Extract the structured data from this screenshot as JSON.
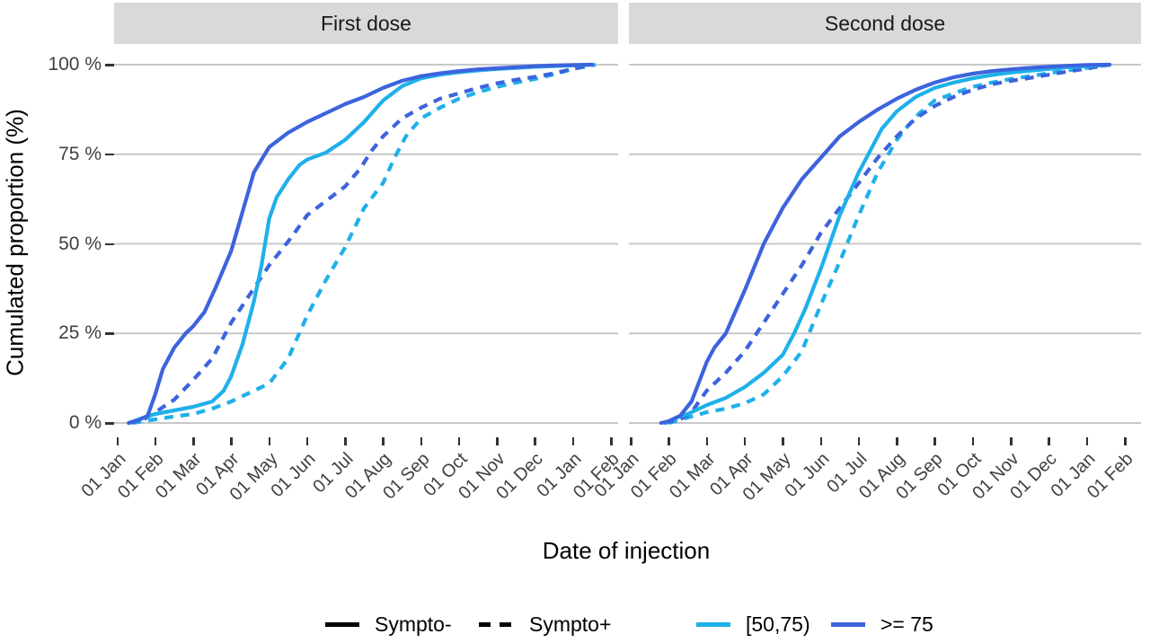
{
  "chart_data": {
    "type": "line",
    "description": "Faceted cumulative distribution curves (ggplot style), cumulated proportion of vaccine injections over time",
    "x_axis": {
      "label": "Date of injection",
      "tick_labels": [
        "01 Jan",
        "01 Feb",
        "01 Mar",
        "01 Apr",
        "01 May",
        "01 Jun",
        "01 Jul",
        "01 Aug",
        "01 Sep",
        "01 Oct",
        "01 Nov",
        "01 Dec",
        "01 Jan",
        "01 Feb"
      ],
      "unit": "month_index_from_first_jan"
    },
    "y_axis": {
      "label": "Cumulated proportion (%)",
      "tick_labels": [
        "0 %",
        "25 %",
        "50 %",
        "75 %",
        "100 %"
      ],
      "tick_values": [
        0,
        25,
        50,
        75,
        100
      ],
      "range": [
        0,
        100
      ]
    },
    "grid": "horizontal-major-only",
    "legend_position": "bottom",
    "legend": {
      "linetype_items": [
        {
          "label": "Sympto-",
          "dash": false
        },
        {
          "label": "Sympto+",
          "dash": true
        }
      ],
      "color_items": [
        {
          "label": "[50,75)",
          "color_key": "cyan"
        },
        {
          "label": ">= 75",
          "color_key": "blue"
        }
      ]
    },
    "colors": {
      "cyan": "#1FB0E9",
      "blue": "#3D63DD",
      "grid": "#C8C8C8",
      "strip_bg": "#D9D9D9",
      "strip_text": "#1A1A1A",
      "axis_text": "#404040",
      "title_text": "#000000",
      "legend_key_black": "#000000"
    },
    "facets": [
      {
        "label": "First dose",
        "series": [
          {
            "age_group": "[50,75)",
            "symptom": "Sympto+",
            "color_key": "cyan",
            "dash": true,
            "points": [
              [
                0.4,
                0
              ],
              [
                1,
                1
              ],
              [
                1.5,
                1.8
              ],
              [
                2,
                2.5
              ],
              [
                2.5,
                4
              ],
              [
                3,
                6
              ],
              [
                3.5,
                8.5
              ],
              [
                4,
                11
              ],
              [
                4.5,
                18
              ],
              [
                5,
                30
              ],
              [
                5.5,
                40
              ],
              [
                6,
                49
              ],
              [
                6.5,
                60
              ],
              [
                7,
                67
              ],
              [
                7.3,
                74
              ],
              [
                7.6,
                80
              ],
              [
                8,
                85
              ],
              [
                8.5,
                88
              ],
              [
                9,
                90.5
              ],
              [
                9.5,
                92.3
              ],
              [
                10,
                93.8
              ],
              [
                10.5,
                95
              ],
              [
                11,
                96
              ],
              [
                11.5,
                97.3
              ],
              [
                12,
                98.8
              ],
              [
                12.6,
                100
              ]
            ]
          },
          {
            "age_group": ">= 75",
            "symptom": "Sympto+",
            "color_key": "blue",
            "dash": true,
            "points": [
              [
                0.3,
                0
              ],
              [
                0.7,
                1
              ],
              [
                1,
                3
              ],
              [
                1.5,
                6.5
              ],
              [
                2,
                12
              ],
              [
                2.5,
                18
              ],
              [
                2.8,
                24
              ],
              [
                3,
                28
              ],
              [
                3.5,
                36
              ],
              [
                4,
                44
              ],
              [
                4.3,
                48
              ],
              [
                4.6,
                52
              ],
              [
                5,
                58
              ],
              [
                5.5,
                62
              ],
              [
                6,
                66
              ],
              [
                6.4,
                71
              ],
              [
                6.7,
                76
              ],
              [
                7,
                80
              ],
              [
                7.5,
                85
              ],
              [
                8,
                88
              ],
              [
                8.5,
                90.5
              ],
              [
                9,
                92
              ],
              [
                9.5,
                93.5
              ],
              [
                10,
                94.8
              ],
              [
                10.5,
                95.8
              ],
              [
                11,
                96.6
              ],
              [
                11.5,
                97.6
              ],
              [
                12,
                98.8
              ],
              [
                12.5,
                100
              ]
            ]
          },
          {
            "age_group": "[50,75)",
            "symptom": "Sympto-",
            "color_key": "cyan",
            "dash": false,
            "points": [
              [
                0.3,
                0
              ],
              [
                0.7,
                1.5
              ],
              [
                1,
                2.5
              ],
              [
                1.5,
                3.5
              ],
              [
                2,
                4.5
              ],
              [
                2.5,
                6
              ],
              [
                2.8,
                9
              ],
              [
                3,
                13
              ],
              [
                3.3,
                22
              ],
              [
                3.6,
                34
              ],
              [
                3.8,
                44
              ],
              [
                4,
                57
              ],
              [
                4.2,
                63
              ],
              [
                4.5,
                68
              ],
              [
                4.8,
                72
              ],
              [
                5,
                73.5
              ],
              [
                5.5,
                75.5
              ],
              [
                6,
                79
              ],
              [
                6.5,
                84
              ],
              [
                7,
                90
              ],
              [
                7.5,
                94
              ],
              [
                8,
                96.2
              ],
              [
                8.5,
                97.2
              ],
              [
                9,
                97.9
              ],
              [
                9.5,
                98.4
              ],
              [
                10,
                98.8
              ],
              [
                10.5,
                99.1
              ],
              [
                11,
                99.4
              ],
              [
                11.5,
                99.6
              ],
              [
                12,
                99.8
              ],
              [
                12.5,
                100
              ]
            ]
          },
          {
            "age_group": ">= 75",
            "symptom": "Sympto-",
            "color_key": "blue",
            "dash": false,
            "points": [
              [
                0.3,
                0
              ],
              [
                0.5,
                0.5
              ],
              [
                0.8,
                2
              ],
              [
                1,
                8
              ],
              [
                1.2,
                15
              ],
              [
                1.5,
                21
              ],
              [
                1.8,
                25
              ],
              [
                2,
                27
              ],
              [
                2.3,
                31
              ],
              [
                2.6,
                38
              ],
              [
                3,
                48
              ],
              [
                3.3,
                59
              ],
              [
                3.6,
                70
              ],
              [
                4,
                77
              ],
              [
                4.5,
                81
              ],
              [
                5,
                84
              ],
              [
                5.5,
                86.5
              ],
              [
                6,
                89
              ],
              [
                6.5,
                91
              ],
              [
                7,
                93.5
              ],
              [
                7.5,
                95.5
              ],
              [
                8,
                96.8
              ],
              [
                8.5,
                97.6
              ],
              [
                9,
                98.2
              ],
              [
                9.5,
                98.7
              ],
              [
                10,
                99
              ],
              [
                10.5,
                99.3
              ],
              [
                11,
                99.6
              ],
              [
                11.5,
                99.8
              ],
              [
                12,
                99.9
              ],
              [
                12.5,
                100
              ]
            ]
          }
        ]
      },
      {
        "label": "Second dose",
        "series": [
          {
            "age_group": "[50,75)",
            "symptom": "Sympto+",
            "color_key": "cyan",
            "dash": true,
            "points": [
              [
                1,
                0
              ],
              [
                1.5,
                1.5
              ],
              [
                2,
                3
              ],
              [
                2.5,
                4
              ],
              [
                3,
                5.5
              ],
              [
                3.5,
                8
              ],
              [
                4,
                13
              ],
              [
                4.5,
                20
              ],
              [
                5,
                33
              ],
              [
                5.5,
                45
              ],
              [
                6,
                58
              ],
              [
                6.5,
                70
              ],
              [
                7,
                79
              ],
              [
                7.3,
                83
              ],
              [
                7.6,
                86.5
              ],
              [
                8,
                90
              ],
              [
                8.5,
                92
              ],
              [
                9,
                93.8
              ],
              [
                9.5,
                95
              ],
              [
                10,
                96
              ],
              [
                10.5,
                96.8
              ],
              [
                11,
                97.6
              ],
              [
                11.5,
                98.4
              ],
              [
                12,
                99.1
              ],
              [
                12.6,
                100
              ]
            ]
          },
          {
            "age_group": ">= 75",
            "symptom": "Sympto+",
            "color_key": "blue",
            "dash": true,
            "points": [
              [
                0.9,
                0
              ],
              [
                1.3,
                1
              ],
              [
                1.6,
                3
              ],
              [
                2,
                9
              ],
              [
                2.5,
                14
              ],
              [
                3,
                20
              ],
              [
                3.5,
                28
              ],
              [
                4,
                36
              ],
              [
                4.5,
                44
              ],
              [
                5,
                53
              ],
              [
                5.5,
                60
              ],
              [
                6,
                67
              ],
              [
                6.5,
                74
              ],
              [
                7,
                80
              ],
              [
                7.5,
                85
              ],
              [
                8,
                88.5
              ],
              [
                8.5,
                91
              ],
              [
                9,
                93
              ],
              [
                9.5,
                94.5
              ],
              [
                10,
                95.5
              ],
              [
                10.5,
                96.3
              ],
              [
                11,
                97.2
              ],
              [
                11.5,
                98.1
              ],
              [
                12,
                98.9
              ],
              [
                12.6,
                100
              ]
            ]
          },
          {
            "age_group": "[50,75)",
            "symptom": "Sympto-",
            "color_key": "cyan",
            "dash": false,
            "points": [
              [
                0.9,
                0
              ],
              [
                1.2,
                1.5
              ],
              [
                1.5,
                2.5
              ],
              [
                2,
                5
              ],
              [
                2.5,
                7
              ],
              [
                3,
                10
              ],
              [
                3.5,
                14
              ],
              [
                4,
                19
              ],
              [
                4.3,
                25
              ],
              [
                4.6,
                32
              ],
              [
                5,
                43
              ],
              [
                5.5,
                58
              ],
              [
                6,
                70
              ],
              [
                6.3,
                76
              ],
              [
                6.6,
                82
              ],
              [
                7,
                87
              ],
              [
                7.5,
                91
              ],
              [
                8,
                93.5
              ],
              [
                8.5,
                95
              ],
              [
                9,
                96.2
              ],
              [
                9.5,
                97.1
              ],
              [
                10,
                97.8
              ],
              [
                10.5,
                98.3
              ],
              [
                11,
                98.8
              ],
              [
                11.5,
                99.3
              ],
              [
                12,
                99.6
              ],
              [
                12.6,
                100
              ]
            ]
          },
          {
            "age_group": ">= 75",
            "symptom": "Sympto-",
            "color_key": "blue",
            "dash": false,
            "points": [
              [
                0.8,
                0
              ],
              [
                1,
                0.5
              ],
              [
                1.3,
                2
              ],
              [
                1.6,
                6
              ],
              [
                2,
                17
              ],
              [
                2.2,
                21
              ],
              [
                2.5,
                25
              ],
              [
                3,
                37
              ],
              [
                3.5,
                50
              ],
              [
                4,
                60
              ],
              [
                4.5,
                68
              ],
              [
                5,
                74
              ],
              [
                5.5,
                80
              ],
              [
                6,
                84
              ],
              [
                6.5,
                87.5
              ],
              [
                7,
                90.5
              ],
              [
                7.5,
                93
              ],
              [
                8,
                95
              ],
              [
                8.5,
                96.5
              ],
              [
                9,
                97.5
              ],
              [
                9.5,
                98.2
              ],
              [
                10,
                98.7
              ],
              [
                10.5,
                99.1
              ],
              [
                11,
                99.4
              ],
              [
                11.5,
                99.7
              ],
              [
                12,
                99.9
              ],
              [
                12.6,
                100
              ]
            ]
          }
        ]
      }
    ]
  }
}
